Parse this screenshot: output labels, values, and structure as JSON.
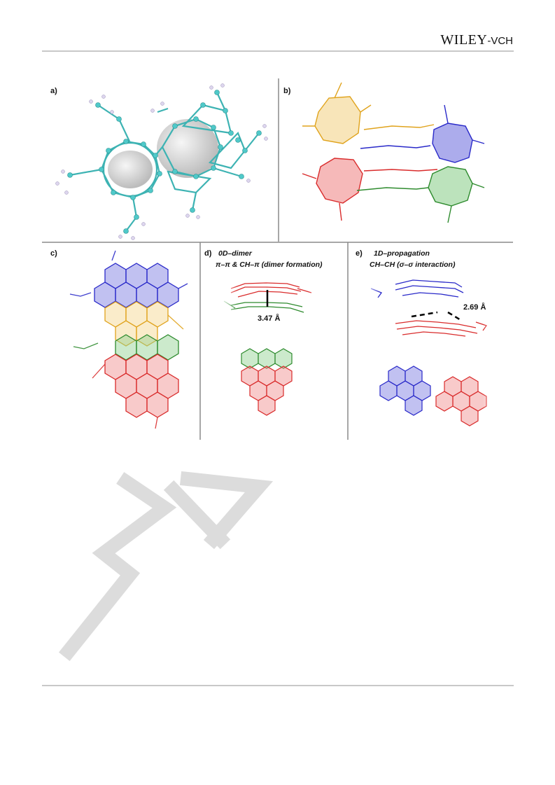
{
  "header": {
    "logo_main": "WILEY",
    "logo_sub": "-VCH"
  },
  "figure": {
    "panels": [
      {
        "id": "a",
        "label": "a)"
      },
      {
        "id": "b",
        "label": "b)"
      },
      {
        "id": "c",
        "label": "c)"
      },
      {
        "id": "d",
        "label": "d)",
        "caption_line1": "0D–dimer",
        "caption_line2": "π–π & CH–π (dimer formation)",
        "measurement": "3.47 Å"
      },
      {
        "id": "e",
        "label": "e)",
        "caption_line1": "1D–propagation",
        "caption_line2": "CH–CH (σ–σ interaction)",
        "measurement": "2.69 Å"
      }
    ],
    "colors": {
      "atom_carbon": "#4fc9c9",
      "atom_hydrogen": "#ddd6ee",
      "yellow": "#e0a31c",
      "blue": "#2929c9",
      "red": "#d92b2b",
      "green": "#2e8b2e",
      "frame": "#7a7a7a"
    }
  },
  "watermark": {
    "text": "WIL"
  }
}
